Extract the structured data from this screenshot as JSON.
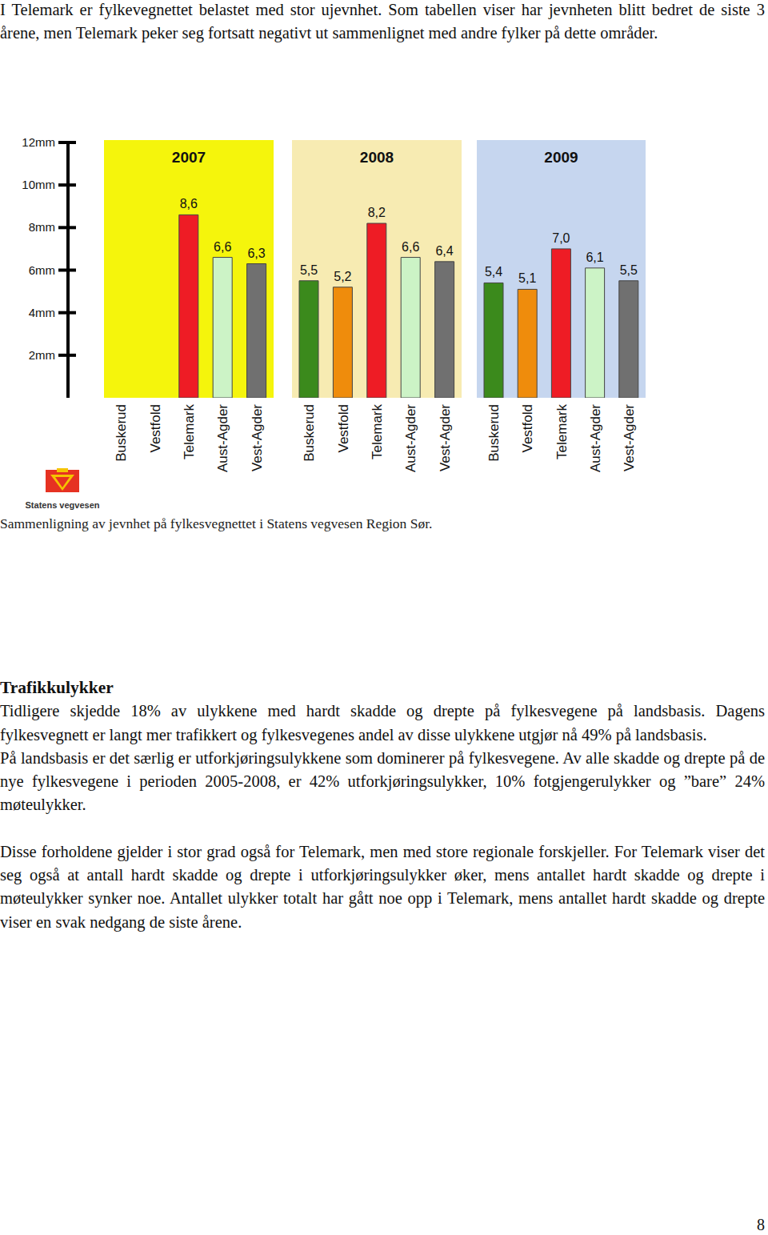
{
  "intro": "I Telemark er fylkevegnettet belastet med stor ujevnhet. Som tabellen viser har jevnheten blitt bedret de siste 3 årene, men Telemark peker seg fortsatt negativt ut sammenlignet med andre fylker på dette områder.",
  "chart_data": [
    {
      "type": "bar",
      "title": "2007",
      "categories": [
        "Buskerud",
        "Vestfold",
        "Telemark",
        "Aust-Agder",
        "Vest-Agder"
      ],
      "values": [
        null,
        null,
        8.6,
        6.6,
        6.3
      ],
      "value_labels": [
        null,
        null,
        "8,6",
        "6,6",
        "6,3"
      ],
      "colors": [
        "#3b8a1c",
        "#ef8c0c",
        "#ee1c25",
        "#ccf3c6",
        "#707070"
      ],
      "ylim": [
        0,
        12
      ],
      "yticks": [
        {
          "value": 2,
          "label": "2mm"
        },
        {
          "value": 4,
          "label": "4mm"
        },
        {
          "value": 6,
          "label": "6mm"
        },
        {
          "value": 8,
          "label": "8mm"
        },
        {
          "value": 10,
          "label": "10mm"
        },
        {
          "value": 12,
          "label": "12mm"
        }
      ],
      "data_labels": true
    },
    {
      "type": "bar",
      "title": "2008",
      "categories": [
        "Buskerud",
        "Vestfold",
        "Telemark",
        "Aust-Agder",
        "Vest-Agder"
      ],
      "values": [
        5.5,
        5.2,
        8.2,
        6.6,
        6.4
      ],
      "value_labels": [
        "5,5",
        "5,2",
        "8,2",
        "6,6",
        "6,4"
      ],
      "colors": [
        "#3b8a1c",
        "#ef8c0c",
        "#ee1c25",
        "#ccf3c6",
        "#707070"
      ],
      "ylim": [
        0,
        12
      ],
      "tick_labels": "x",
      "data_labels": true
    },
    {
      "type": "bar",
      "title": "2009",
      "categories": [
        "Buskerud",
        "Vestfold",
        "Telemark",
        "Aust-Agder",
        "Vest-Agder"
      ],
      "values": [
        5.4,
        5.1,
        7.0,
        6.1,
        5.5
      ],
      "value_labels": [
        "5,4",
        "5,1",
        "7,0",
        "6,1",
        "5,5"
      ],
      "colors": [
        "#3b8a1c",
        "#ef8c0c",
        "#ee1c25",
        "#ccf3c6",
        "#707070"
      ],
      "ylim": [
        0,
        12
      ],
      "tick_labels": "x",
      "data_labels": true
    }
  ],
  "logo_text": "Statens vegvesen",
  "caption": "Sammenligning av jevnhet på fylkesvegnettet i Statens vegvesen Region Sør.",
  "heading": "Trafikkulykker",
  "paragraphs": [
    "Tidligere skjedde 18% av ulykkene med hardt skadde og drepte på fylkesvegene på landsbasis. Dagens fylkesvegnett er langt mer trafikkert og fylkesvegenes andel av disse ulykkene utgjør nå 49% på landsbasis.",
    "På landsbasis er det særlig er utforkjøringsulykkene som dominerer på fylkesvegene. Av alle skadde og drepte på de nye fylkesvegene i perioden 2005-2008, er 42% utforkjøringsulykker, 10% fotgjengerulykker og ”bare” 24% møteulykker.",
    "Disse forholdene gjelder i stor grad også for Telemark, men med store regionale forskjeller. For Telemark viser det seg også at antall hardt skadde og drepte i utforkjøringsulykker øker, mens antallet hardt skadde og drepte i møteulykker synker noe. Antallet ulykker totalt har gått noe opp i Telemark, mens antallet hardt skadde og drepte viser en svak nedgang de siste årene."
  ],
  "page_number": 8
}
